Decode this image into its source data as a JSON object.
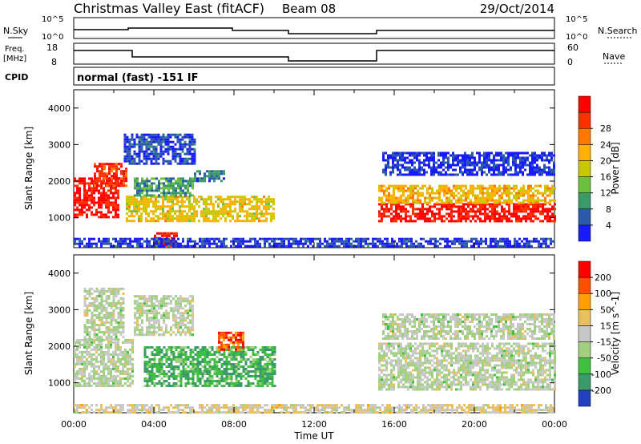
{
  "header": {
    "title": "Christmas Valley East (fitACF)",
    "beam": "Beam 08",
    "date": "29/Oct/2014"
  },
  "status": {
    "nsky_label": "N.Sky",
    "nsky_ticks": [
      "10^5",
      "10^0"
    ],
    "nsearch_label": "N.Search",
    "nsearch_ticks": [
      "10^5",
      "10^0"
    ],
    "freq_label_1": "Freq.",
    "freq_label_2": "[MHz]",
    "freq_ticks": [
      "18",
      "8"
    ],
    "nave_label": "Nave",
    "nave_ticks": [
      "60",
      "0"
    ],
    "cpid_label": "CPID",
    "cpid_text": "normal (fast) -151 IF"
  },
  "chart_data": [
    {
      "type": "heatmap",
      "title": "Power",
      "xlabel": "Time UT",
      "ylabel": "Slant Range [km]",
      "xlim": [
        0,
        24
      ],
      "ylim": [
        180,
        4500
      ],
      "x_ticks": [
        "00:00",
        "04:00",
        "08:00",
        "12:00",
        "16:00",
        "20:00",
        "00:00"
      ],
      "y_ticks": [
        "1000",
        "2000",
        "3000",
        "4000"
      ],
      "colorbar_label": "Power [dB]",
      "colorbar_ticks": [
        "4",
        "8",
        "12",
        "16",
        "20",
        "24",
        "28"
      ],
      "colorbar_colors": [
        "#1a1aff",
        "#2a5aa8",
        "#3a9a6a",
        "#6ec040",
        "#c8c800",
        "#ffb000",
        "#ff7800",
        "#ff3000",
        "#ff0000"
      ],
      "regions": [
        {
          "t0": 0.0,
          "t1": 2.2,
          "r0": 1000,
          "r1": 2100,
          "level": 0.92
        },
        {
          "t0": 1.0,
          "t1": 2.6,
          "r0": 1900,
          "r1": 2500,
          "level": 0.85
        },
        {
          "t0": 2.6,
          "t1": 10.0,
          "r0": 900,
          "r1": 1600,
          "level": 0.55
        },
        {
          "t0": 3.0,
          "t1": 6.0,
          "r0": 1600,
          "r1": 2100,
          "level": 0.3
        },
        {
          "t0": 6.0,
          "t1": 7.5,
          "r0": 2000,
          "r1": 2300,
          "level": 0.2
        },
        {
          "t0": 4.0,
          "t1": 5.2,
          "r0": 250,
          "r1": 600,
          "level": 0.95
        },
        {
          "t0": 2.5,
          "t1": 6.0,
          "r0": 2500,
          "r1": 3300,
          "level": 0.12
        },
        {
          "t0": 15.2,
          "t1": 24.0,
          "r0": 900,
          "r1": 1400,
          "level": 0.93
        },
        {
          "t0": 15.2,
          "t1": 24.0,
          "r0": 1400,
          "r1": 1900,
          "level": 0.6
        },
        {
          "t0": 15.4,
          "t1": 24.0,
          "r0": 2200,
          "r1": 2800,
          "level": 0.08
        },
        {
          "t0": 0.0,
          "t1": 24.0,
          "r0": 200,
          "r1": 450,
          "level": 0.1
        }
      ]
    },
    {
      "type": "heatmap",
      "title": "Velocity",
      "xlabel": "Time UT",
      "ylabel": "Slant Range [km]",
      "xlim": [
        0,
        24
      ],
      "ylim": [
        180,
        4500
      ],
      "x_ticks": [
        "00:00",
        "04:00",
        "08:00",
        "12:00",
        "16:00",
        "20:00",
        "00:00"
      ],
      "y_ticks": [
        "1000",
        "2000",
        "3000",
        "4000"
      ],
      "colorbar_label": "Velocity [m s^-1]",
      "colorbar_ticks": [
        "200",
        "100",
        "50",
        "15",
        "-15",
        "-50",
        "-100",
        "-200"
      ],
      "colorbar_colors": [
        "#2040c0",
        "#3a9a6a",
        "#40c040",
        "#a0d080",
        "#c8c8c8",
        "#e8c060",
        "#ffa000",
        "#ff5000",
        "#ff0000"
      ],
      "regions": [
        {
          "t0": 0.0,
          "t1": 3.0,
          "r0": 900,
          "r1": 2200,
          "level": 0.45
        },
        {
          "t0": 0.5,
          "t1": 2.5,
          "r0": 2200,
          "r1": 3600,
          "level": 0.45
        },
        {
          "t0": 3.5,
          "t1": 10.0,
          "r0": 900,
          "r1": 2000,
          "level": 0.25
        },
        {
          "t0": 7.2,
          "t1": 8.5,
          "r0": 1900,
          "r1": 2400,
          "level": 0.85
        },
        {
          "t0": 3.0,
          "t1": 6.0,
          "r0": 2300,
          "r1": 3400,
          "level": 0.45
        },
        {
          "t0": 15.2,
          "t1": 24.0,
          "r0": 800,
          "r1": 2100,
          "level": 0.45
        },
        {
          "t0": 15.4,
          "t1": 24.0,
          "r0": 2200,
          "r1": 2900,
          "level": 0.45
        },
        {
          "t0": 0.0,
          "t1": 24.0,
          "r0": 200,
          "r1": 420,
          "level": 0.55
        }
      ]
    }
  ]
}
